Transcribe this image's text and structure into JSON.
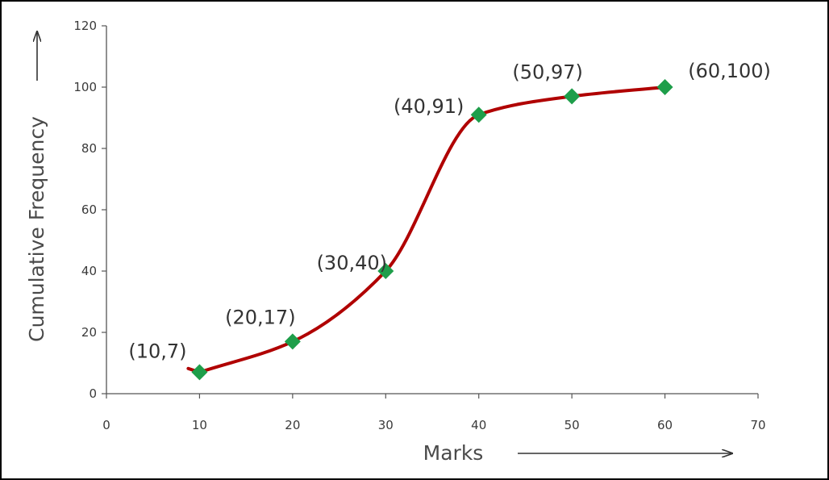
{
  "chart_data": {
    "type": "line",
    "title": "",
    "xlabel": "Marks",
    "ylabel": "Cumulative Frequency",
    "xlim": [
      0,
      70
    ],
    "ylim": [
      0,
      120
    ],
    "xticks": [
      0,
      10,
      20,
      30,
      40,
      50,
      60,
      70
    ],
    "yticks": [
      0,
      20,
      40,
      60,
      80,
      100,
      120
    ],
    "grid": false,
    "series": [
      {
        "x": [
          10,
          20,
          30,
          40,
          50,
          60
        ],
        "y": [
          7,
          17,
          40,
          91,
          97,
          100
        ],
        "labels": [
          "(10,7)",
          "(20,17)",
          "(30,40)",
          "(40,91)",
          "(50,97)",
          "(60,100)"
        ],
        "line_color": "#b00000",
        "marker_color": "#1e9e4a",
        "marker": "diamond",
        "smooth": true
      }
    ]
  }
}
